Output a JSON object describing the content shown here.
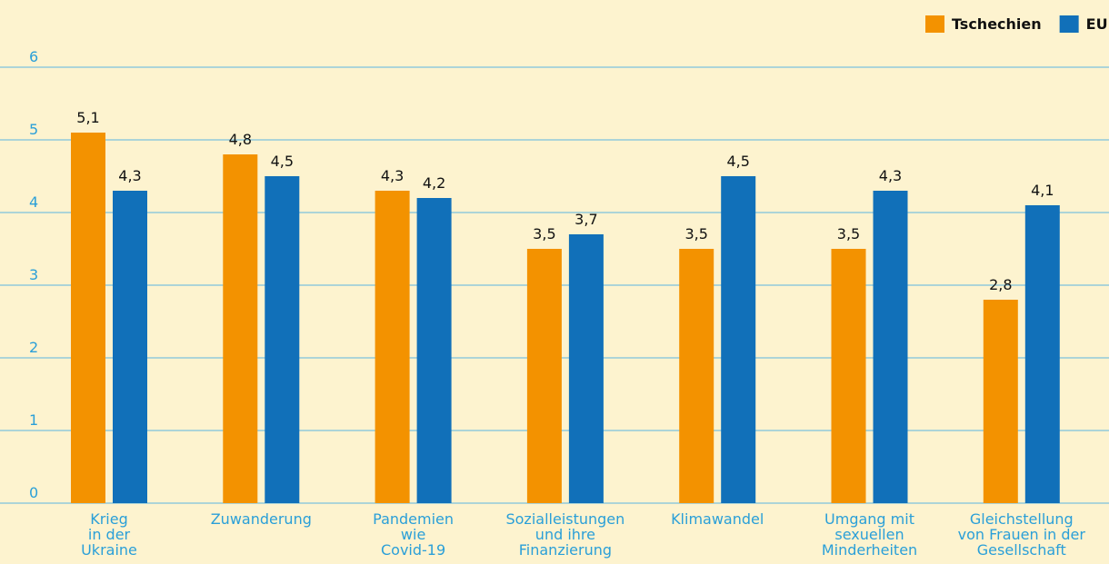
{
  "chart_data": {
    "type": "bar",
    "categories": [
      "Krieg\nin der\nUkraine",
      "Zuwanderung",
      "Pandemien\nwie\nCovid-19",
      "Sozialleistungen\nund ihre\nFinanzierung",
      "Klimawandel",
      "Umgang mit\nsexuellen\nMinderheiten",
      "Gleichstellung\nvon Frauen in der\nGesellschaft"
    ],
    "series": [
      {
        "name": "Tschechien",
        "color": "#f39200",
        "values": [
          5.1,
          4.8,
          4.3,
          3.5,
          3.5,
          3.5,
          2.8
        ],
        "value_labels": [
          "5,1",
          "4,8",
          "4,3",
          "3,5",
          "3,5",
          "3,5",
          "2,8"
        ]
      },
      {
        "name": "EU",
        "color": "#1170b9",
        "values": [
          4.3,
          4.5,
          4.2,
          3.7,
          4.5,
          4.3,
          4.1
        ],
        "value_labels": [
          "4,3",
          "4,5",
          "4,2",
          "3,7",
          "4,5",
          "4,3",
          "4,1"
        ]
      }
    ],
    "ylim": [
      0,
      6
    ],
    "yticks": [
      0,
      1,
      2,
      3,
      4,
      5,
      6
    ],
    "grid": true,
    "legend": "top-right"
  }
}
